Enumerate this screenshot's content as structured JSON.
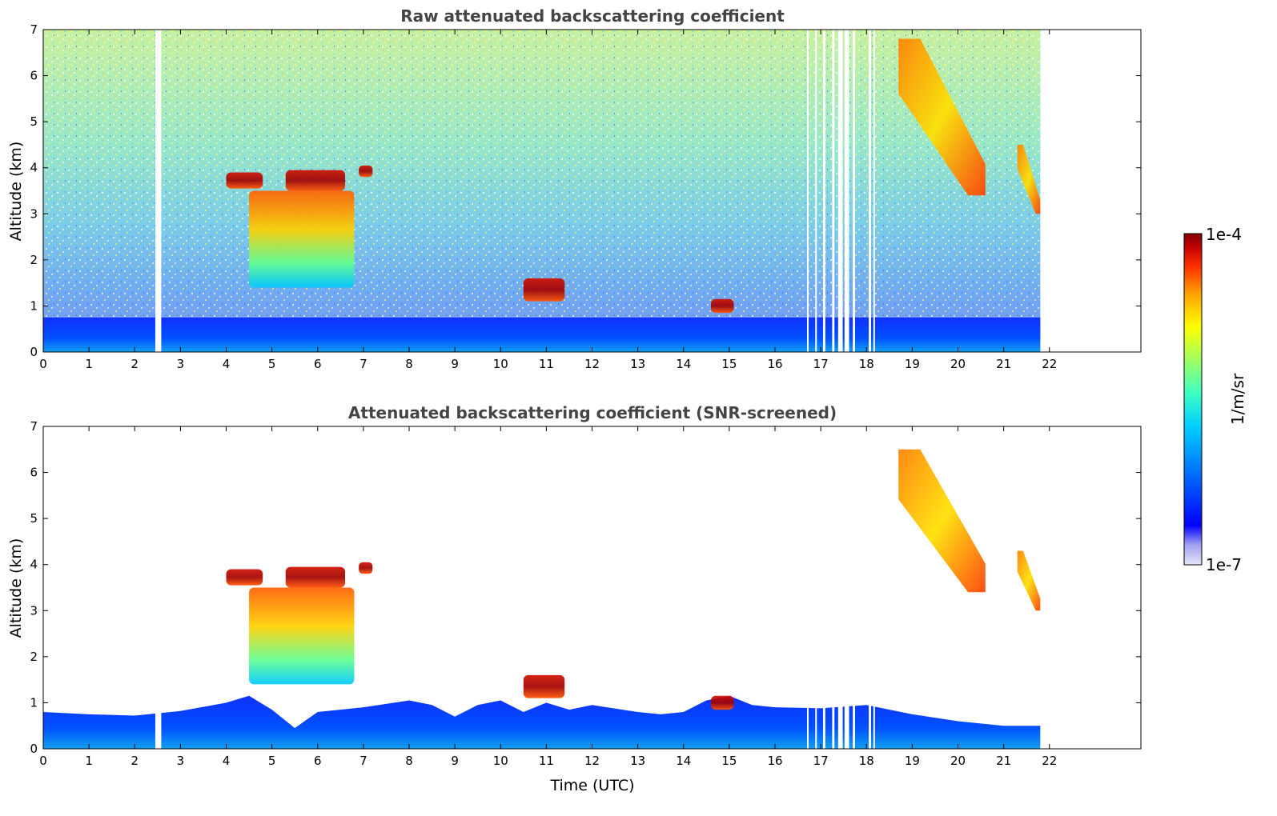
{
  "chart_data": [
    {
      "type": "heatmap",
      "title": "Raw attenuated backscattering coefficient",
      "xlabel": "",
      "ylabel": "Altitude (km)",
      "xlim": [
        0,
        24
      ],
      "ylim": [
        0,
        7
      ],
      "x_ticks": [
        "0",
        "1",
        "2",
        "3",
        "4",
        "5",
        "6",
        "7",
        "8",
        "9",
        "10",
        "11",
        "12",
        "13",
        "14",
        "15",
        "16",
        "17",
        "18",
        "19",
        "20",
        "21",
        "22"
      ],
      "y_ticks": [
        "0",
        "1",
        "2",
        "3",
        "4",
        "5",
        "6",
        "7"
      ],
      "data_extent_hours": [
        0,
        21.8
      ],
      "data_gaps_hours": [
        [
          2.45,
          2.58
        ],
        [
          16.7,
          16.72
        ],
        [
          16.88,
          16.9
        ],
        [
          17.05,
          17.1
        ],
        [
          17.25,
          17.3
        ],
        [
          17.38,
          17.48
        ],
        [
          17.52,
          17.62
        ],
        [
          17.7,
          17.75
        ],
        [
          18.05,
          18.1
        ],
        [
          18.15,
          18.18
        ]
      ],
      "features": [
        {
          "label": "boundary-layer",
          "x": [
            0,
            21.8
          ],
          "y": [
            0,
            0.7
          ],
          "level": "low"
        },
        {
          "label": "cloud",
          "x": [
            4.0,
            4.8
          ],
          "y": [
            3.55,
            3.9
          ],
          "level": "high"
        },
        {
          "label": "cloud",
          "x": [
            5.3,
            6.6
          ],
          "y": [
            3.5,
            3.95
          ],
          "level": "high"
        },
        {
          "label": "cloud",
          "x": [
            6.9,
            7.2
          ],
          "y": [
            3.8,
            4.05
          ],
          "level": "high"
        },
        {
          "label": "cloud",
          "x": [
            4.5,
            6.8
          ],
          "y": [
            1.4,
            3.5
          ],
          "level": "mid"
        },
        {
          "label": "cloud",
          "x": [
            10.5,
            11.4
          ],
          "y": [
            1.1,
            1.6
          ],
          "level": "high"
        },
        {
          "label": "cloud",
          "x": [
            14.6,
            15.1
          ],
          "y": [
            0.85,
            1.15
          ],
          "level": "high"
        },
        {
          "label": "cloud",
          "x": [
            18.7,
            20.6
          ],
          "y": [
            3.4,
            6.8
          ],
          "level": "mid-high"
        },
        {
          "label": "cloud",
          "x": [
            21.3,
            21.8
          ],
          "y": [
            3.0,
            4.5
          ],
          "level": "mid-high"
        },
        {
          "label": "noise",
          "x": [
            0,
            21.8
          ],
          "y": [
            0.7,
            7
          ],
          "level": "noisy"
        }
      ]
    },
    {
      "type": "heatmap",
      "title": "Attenuated backscattering coefficient (SNR-screened)",
      "xlabel": "Time (UTC)",
      "ylabel": "Altitude (km)",
      "xlim": [
        0,
        24
      ],
      "ylim": [
        0,
        7
      ],
      "x_ticks": [
        "0",
        "1",
        "2",
        "3",
        "4",
        "5",
        "6",
        "7",
        "8",
        "9",
        "10",
        "11",
        "12",
        "13",
        "14",
        "15",
        "16",
        "17",
        "18",
        "19",
        "20",
        "21",
        "22"
      ],
      "y_ticks": [
        "0",
        "1",
        "2",
        "3",
        "4",
        "5",
        "6",
        "7"
      ],
      "data_extent_hours": [
        0,
        21.8
      ],
      "data_gaps_hours": [
        [
          2.45,
          2.58
        ],
        [
          16.7,
          16.72
        ],
        [
          16.88,
          16.9
        ],
        [
          17.05,
          17.1
        ],
        [
          17.25,
          17.3
        ],
        [
          17.38,
          17.48
        ],
        [
          17.52,
          17.62
        ],
        [
          17.7,
          17.75
        ],
        [
          18.05,
          18.1
        ],
        [
          18.15,
          18.18
        ]
      ],
      "boundary_layer_top_km": [
        [
          0,
          0.8
        ],
        [
          1,
          0.75
        ],
        [
          2,
          0.72
        ],
        [
          3,
          0.82
        ],
        [
          4,
          1.0
        ],
        [
          4.5,
          1.15
        ],
        [
          5,
          0.85
        ],
        [
          5.5,
          0.45
        ],
        [
          6,
          0.8
        ],
        [
          7,
          0.9
        ],
        [
          8,
          1.05
        ],
        [
          8.5,
          0.95
        ],
        [
          9,
          0.7
        ],
        [
          9.5,
          0.95
        ],
        [
          10,
          1.05
        ],
        [
          10.5,
          0.8
        ],
        [
          11,
          1.0
        ],
        [
          11.5,
          0.85
        ],
        [
          12,
          0.95
        ],
        [
          13,
          0.8
        ],
        [
          13.5,
          0.75
        ],
        [
          14,
          0.8
        ],
        [
          14.5,
          1.05
        ],
        [
          15,
          1.15
        ],
        [
          15.5,
          0.95
        ],
        [
          16,
          0.9
        ],
        [
          17,
          0.88
        ],
        [
          18,
          0.95
        ],
        [
          19,
          0.75
        ],
        [
          20,
          0.6
        ],
        [
          21,
          0.5
        ],
        [
          21.8,
          0.5
        ]
      ],
      "features": [
        {
          "label": "cloud",
          "x": [
            4.0,
            4.8
          ],
          "y": [
            3.55,
            3.9
          ],
          "level": "high"
        },
        {
          "label": "cloud",
          "x": [
            5.3,
            6.6
          ],
          "y": [
            3.5,
            3.95
          ],
          "level": "high"
        },
        {
          "label": "cloud",
          "x": [
            6.9,
            7.2
          ],
          "y": [
            3.8,
            4.05
          ],
          "level": "high"
        },
        {
          "label": "cloud",
          "x": [
            4.5,
            6.8
          ],
          "y": [
            1.4,
            3.5
          ],
          "level": "mid"
        },
        {
          "label": "cloud",
          "x": [
            10.5,
            11.4
          ],
          "y": [
            1.1,
            1.6
          ],
          "level": "high"
        },
        {
          "label": "cloud",
          "x": [
            14.6,
            15.1
          ],
          "y": [
            0.85,
            1.15
          ],
          "level": "high"
        },
        {
          "label": "cloud",
          "x": [
            18.7,
            20.6
          ],
          "y": [
            3.4,
            6.5
          ],
          "level": "mid-high"
        },
        {
          "label": "cloud",
          "x": [
            21.3,
            21.8
          ],
          "y": [
            3.0,
            4.3
          ],
          "level": "mid-high"
        }
      ]
    }
  ],
  "colorbar": {
    "label": "1/m/sr",
    "min_label": "1e-7",
    "max_label": "1e-4",
    "scale": "log",
    "colormap": "jet",
    "colors": [
      "#e6e6f8",
      "#a0a0ef",
      "#0000ff",
      "#0080ff",
      "#00d0ff",
      "#40ffc0",
      "#a0ff60",
      "#ffff00",
      "#ffa000",
      "#ff3000",
      "#c00000",
      "#800000"
    ]
  }
}
